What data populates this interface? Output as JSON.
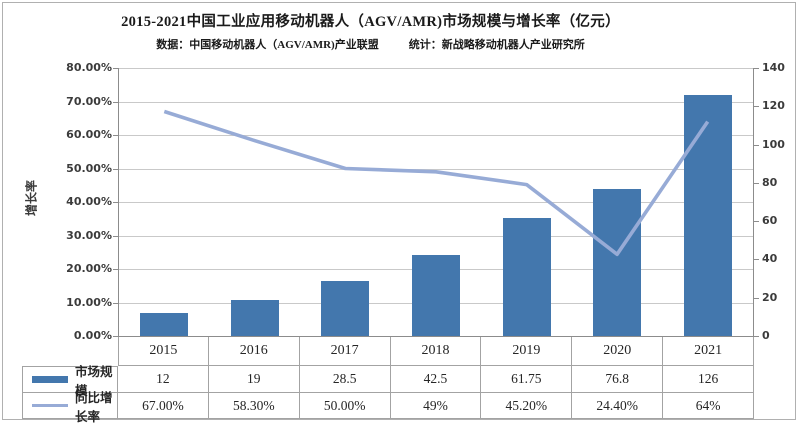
{
  "header": {
    "title": "2015-2021中国工业应用移动机器人（AGV/AMR)市场规模与增长率（亿元）",
    "source_label": "数据：中国移动机器人（AGV/AMR)产业联盟",
    "stats_label": "统计：新战略移动机器人产业研究所"
  },
  "chart_data": {
    "type": "combo-bar-line",
    "categories": [
      "2015",
      "2016",
      "2017",
      "2018",
      "2019",
      "2020",
      "2021"
    ],
    "series": [
      {
        "name": "市场规模",
        "type": "bar",
        "axis": "right",
        "values": [
          12,
          19,
          28.5,
          42.5,
          61.75,
          76.8,
          126
        ],
        "display": [
          "12",
          "19",
          "28.5",
          "42.5",
          "61.75",
          "76.8",
          "126"
        ],
        "color": "#4377ad"
      },
      {
        "name": "同比增长率",
        "type": "line",
        "axis": "left",
        "values_pct": [
          67,
          58.3,
          50,
          49,
          45.2,
          24.4,
          64
        ],
        "display": [
          "67.00%",
          "58.30%",
          "50.00%",
          "49%",
          "45.20%",
          "24.40%",
          "64%"
        ],
        "color": "#97abd6"
      }
    ],
    "left_axis": {
      "label": "增长率",
      "min_pct": 0,
      "max_pct": 80,
      "step_pct": 10,
      "tick_labels": [
        "80.00%",
        "70.00%",
        "60.00%",
        "50.00%",
        "40.00%",
        "30.00%",
        "20.00%",
        "10.00%",
        "0.00%"
      ]
    },
    "right_axis": {
      "min": 0,
      "max": 140,
      "step": 20,
      "tick_labels": [
        "140",
        "120",
        "100",
        "80",
        "60",
        "40",
        "20",
        "0"
      ]
    },
    "grid": true,
    "legend_position": "data-table-left",
    "colors": {
      "bar": "#4377ad",
      "line": "#97abd6",
      "gridline": "#c9c9c9",
      "axis_line": "#8c8c8c",
      "table_border": "#a3a3a3"
    }
  }
}
